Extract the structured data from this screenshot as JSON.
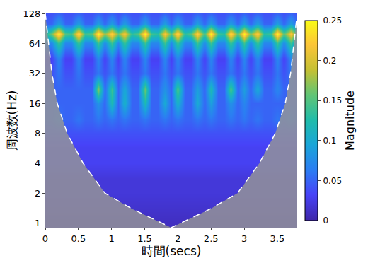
{
  "chart_data": {
    "type": "heatmap",
    "xlabel": "時間(secs)",
    "ylabel": "周波数(Hz)",
    "log": "y",
    "xlim": [
      0,
      3.8
    ],
    "xticks": [
      0,
      0.5,
      1,
      1.5,
      2,
      2.5,
      3,
      3.5
    ],
    "ylim": [
      0.9,
      128
    ],
    "yticks": [
      1,
      2,
      4,
      8,
      16,
      32,
      64,
      128
    ],
    "x": [
      0,
      0.1,
      0.2,
      0.3,
      0.4,
      0.5,
      0.6,
      0.7,
      0.8,
      0.9,
      1,
      1.1,
      1.2,
      1.3,
      1.4,
      1.5,
      1.6,
      1.7,
      1.8,
      1.9,
      2,
      2.1,
      2.2,
      2.3,
      2.4,
      2.5,
      2.6,
      2.7,
      2.8,
      2.9,
      3,
      3.1,
      3.2,
      3.3,
      3.4,
      3.5,
      3.6,
      3.7,
      3.8
    ],
    "y": [
      1,
      1.4,
      2,
      2.8,
      4,
      5.7,
      8,
      11,
      16,
      22,
      32,
      45,
      64,
      80,
      100,
      128
    ],
    "z": [
      [
        0.01,
        0.01,
        0.01,
        0.01,
        0.01,
        0.01,
        0.01,
        0.01,
        0.01,
        0.01,
        0.01,
        0.01,
        0.01,
        0.01,
        0.01,
        0.01,
        0.01,
        0.01,
        0.01,
        0.01,
        0.01,
        0.01,
        0.01,
        0.01,
        0.01,
        0.01,
        0.01,
        0.01,
        0.01,
        0.01,
        0.01,
        0.01,
        0.01,
        0.01,
        0.01,
        0.01,
        0.01,
        0.01,
        0.01
      ],
      [
        0.015,
        0.015,
        0.015,
        0.015,
        0.015,
        0.015,
        0.015,
        0.015,
        0.015,
        0.015,
        0.015,
        0.015,
        0.015,
        0.015,
        0.015,
        0.015,
        0.015,
        0.015,
        0.015,
        0.015,
        0.015,
        0.015,
        0.015,
        0.015,
        0.015,
        0.015,
        0.015,
        0.015,
        0.015,
        0.015,
        0.015,
        0.015,
        0.015,
        0.015,
        0.015,
        0.015,
        0.015,
        0.015,
        0.015
      ],
      [
        0.02,
        0.02,
        0.02,
        0.02,
        0.02,
        0.02,
        0.02,
        0.02,
        0.02,
        0.02,
        0.02,
        0.02,
        0.02,
        0.02,
        0.02,
        0.02,
        0.02,
        0.02,
        0.02,
        0.02,
        0.02,
        0.02,
        0.02,
        0.02,
        0.02,
        0.02,
        0.02,
        0.02,
        0.02,
        0.02,
        0.02,
        0.02,
        0.02,
        0.02,
        0.02,
        0.02,
        0.02,
        0.02,
        0.02
      ],
      [
        0.02,
        0.02,
        0.02,
        0.02,
        0.02,
        0.02,
        0.02,
        0.02,
        0.02,
        0.02,
        0.02,
        0.02,
        0.02,
        0.02,
        0.02,
        0.02,
        0.02,
        0.02,
        0.02,
        0.02,
        0.02,
        0.02,
        0.02,
        0.02,
        0.02,
        0.02,
        0.02,
        0.02,
        0.02,
        0.02,
        0.02,
        0.02,
        0.02,
        0.02,
        0.02,
        0.02,
        0.02,
        0.02,
        0.02
      ],
      [
        0.03,
        0.03,
        0.03,
        0.03,
        0.03,
        0.03,
        0.03,
        0.03,
        0.03,
        0.03,
        0.03,
        0.03,
        0.03,
        0.03,
        0.03,
        0.03,
        0.03,
        0.03,
        0.03,
        0.03,
        0.03,
        0.03,
        0.03,
        0.03,
        0.03,
        0.03,
        0.03,
        0.03,
        0.03,
        0.03,
        0.03,
        0.03,
        0.03,
        0.03,
        0.03,
        0.03,
        0.03,
        0.03,
        0.03
      ],
      [
        0.03,
        0.03,
        0.03,
        0.03,
        0.03,
        0.03,
        0.03,
        0.03,
        0.03,
        0.03,
        0.03,
        0.03,
        0.03,
        0.03,
        0.03,
        0.03,
        0.03,
        0.03,
        0.03,
        0.03,
        0.03,
        0.03,
        0.03,
        0.03,
        0.03,
        0.03,
        0.03,
        0.03,
        0.03,
        0.03,
        0.03,
        0.03,
        0.03,
        0.03,
        0.03,
        0.03,
        0.03,
        0.03,
        0.03
      ],
      [
        0.04,
        0.04,
        0.04,
        0.04,
        0.04,
        0.04,
        0.04,
        0.04,
        0.04,
        0.04,
        0.04,
        0.04,
        0.04,
        0.04,
        0.04,
        0.04,
        0.04,
        0.04,
        0.04,
        0.04,
        0.04,
        0.04,
        0.04,
        0.04,
        0.04,
        0.04,
        0.04,
        0.04,
        0.04,
        0.04,
        0.04,
        0.04,
        0.04,
        0.04,
        0.04,
        0.04,
        0.04,
        0.04,
        0.04
      ],
      [
        0.05,
        0.05,
        0.06,
        0.05,
        0.05,
        0.06,
        0.05,
        0.05,
        0.06,
        0.05,
        0.06,
        0.05,
        0.06,
        0.05,
        0.05,
        0.06,
        0.05,
        0.05,
        0.06,
        0.05,
        0.06,
        0.05,
        0.05,
        0.06,
        0.05,
        0.06,
        0.05,
        0.05,
        0.06,
        0.05,
        0.06,
        0.05,
        0.06,
        0.05,
        0.05,
        0.06,
        0.05,
        0.06,
        0.05
      ],
      [
        0.05,
        0.05,
        0.05,
        0.05,
        0.05,
        0.05,
        0.05,
        0.05,
        0.08,
        0.05,
        0.12,
        0.05,
        0.11,
        0.05,
        0.05,
        0.12,
        0.05,
        0.05,
        0.1,
        0.05,
        0.11,
        0.05,
        0.05,
        0.1,
        0.05,
        0.09,
        0.05,
        0.05,
        0.08,
        0.05,
        0.07,
        0.05,
        0.05,
        0.05,
        0.05,
        0.05,
        0.05,
        0.05,
        0.05
      ],
      [
        0.05,
        0.05,
        0.05,
        0.05,
        0.05,
        0.05,
        0.05,
        0.05,
        0.17,
        0.05,
        0.14,
        0.05,
        0.1,
        0.05,
        0.05,
        0.16,
        0.05,
        0.05,
        0.08,
        0.05,
        0.15,
        0.05,
        0.05,
        0.09,
        0.05,
        0.12,
        0.05,
        0.05,
        0.15,
        0.05,
        0.09,
        0.05,
        0.1,
        0.05,
        0.05,
        0.07,
        0.05,
        0.05,
        0.05
      ],
      [
        0.04,
        0.04,
        0.06,
        0.04,
        0.04,
        0.06,
        0.04,
        0.04,
        0.06,
        0.04,
        0.06,
        0.04,
        0.06,
        0.04,
        0.04,
        0.06,
        0.04,
        0.04,
        0.06,
        0.04,
        0.06,
        0.04,
        0.04,
        0.06,
        0.04,
        0.06,
        0.04,
        0.04,
        0.06,
        0.04,
        0.06,
        0.04,
        0.06,
        0.04,
        0.04,
        0.06,
        0.04,
        0.06,
        0.04
      ],
      [
        0.03,
        0.03,
        0.07,
        0.03,
        0.03,
        0.07,
        0.03,
        0.03,
        0.07,
        0.03,
        0.07,
        0.03,
        0.07,
        0.03,
        0.03,
        0.07,
        0.03,
        0.03,
        0.07,
        0.03,
        0.07,
        0.03,
        0.03,
        0.07,
        0.03,
        0.07,
        0.03,
        0.03,
        0.07,
        0.03,
        0.07,
        0.03,
        0.07,
        0.03,
        0.03,
        0.07,
        0.03,
        0.07,
        0.03
      ],
      [
        0.07,
        0.07,
        0.14,
        0.07,
        0.07,
        0.14,
        0.07,
        0.07,
        0.14,
        0.07,
        0.14,
        0.07,
        0.14,
        0.07,
        0.07,
        0.14,
        0.07,
        0.07,
        0.14,
        0.07,
        0.14,
        0.07,
        0.07,
        0.14,
        0.07,
        0.14,
        0.07,
        0.07,
        0.14,
        0.07,
        0.14,
        0.07,
        0.14,
        0.07,
        0.07,
        0.14,
        0.07,
        0.14,
        0.07
      ],
      [
        0.12,
        0.16,
        0.25,
        0.15,
        0.14,
        0.24,
        0.14,
        0.15,
        0.25,
        0.17,
        0.23,
        0.16,
        0.22,
        0.13,
        0.15,
        0.25,
        0.14,
        0.13,
        0.22,
        0.15,
        0.24,
        0.13,
        0.15,
        0.23,
        0.14,
        0.25,
        0.14,
        0.13,
        0.24,
        0.15,
        0.25,
        0.16,
        0.23,
        0.13,
        0.14,
        0.25,
        0.15,
        0.22,
        0.14
      ],
      [
        0.05,
        0.05,
        0.09,
        0.05,
        0.05,
        0.09,
        0.05,
        0.05,
        0.09,
        0.05,
        0.09,
        0.05,
        0.09,
        0.05,
        0.05,
        0.09,
        0.05,
        0.05,
        0.09,
        0.05,
        0.09,
        0.05,
        0.05,
        0.09,
        0.05,
        0.09,
        0.05,
        0.05,
        0.09,
        0.05,
        0.09,
        0.05,
        0.09,
        0.05,
        0.05,
        0.09,
        0.05,
        0.09,
        0.05
      ],
      [
        0.04,
        0.04,
        0.05,
        0.04,
        0.04,
        0.05,
        0.04,
        0.04,
        0.05,
        0.04,
        0.05,
        0.04,
        0.05,
        0.04,
        0.04,
        0.05,
        0.04,
        0.04,
        0.05,
        0.04,
        0.05,
        0.04,
        0.04,
        0.05,
        0.04,
        0.05,
        0.04,
        0.04,
        0.05,
        0.04,
        0.05,
        0.04,
        0.05,
        0.04,
        0.04,
        0.05,
        0.04,
        0.05,
        0.04
      ]
    ],
    "colorbar": {
      "title": "Magnitude",
      "range": [
        0,
        0.25
      ],
      "ticks": [
        0,
        0.05,
        0.1,
        0.15,
        0.2,
        0.25
      ]
    },
    "coi": {
      "x": [
        0,
        0.05,
        0.1,
        0.18,
        0.33,
        0.57,
        0.9,
        1.3,
        1.9,
        2.5,
        2.9,
        3.23,
        3.47,
        3.62,
        3.7,
        3.75,
        3.8
      ],
      "y": [
        128,
        64,
        32,
        16,
        8,
        4,
        2,
        1.4,
        0.9,
        1.4,
        2,
        4,
        8,
        16,
        32,
        64,
        128
      ],
      "color": "#ffffff",
      "line_style": "dashed"
    }
  }
}
